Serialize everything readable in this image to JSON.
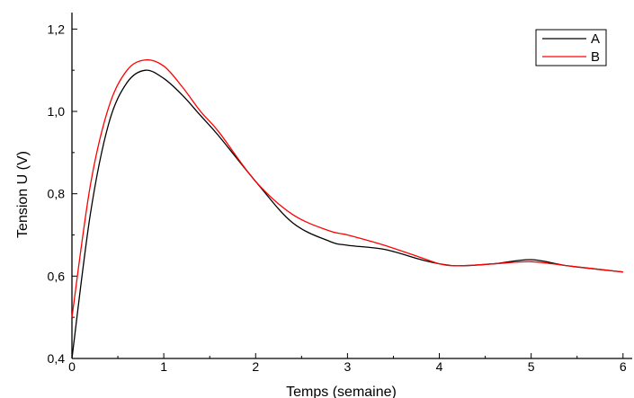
{
  "chart_data": {
    "type": "line",
    "title": "",
    "xlabel": "Temps (semaine)",
    "ylabel": "Tension U (V)",
    "xlim": [
      0,
      6.1
    ],
    "ylim": [
      0.4,
      1.24
    ],
    "x_ticks": [
      0,
      1,
      2,
      3,
      4,
      5,
      6
    ],
    "x_tick_labels": [
      "0",
      "1",
      "2",
      "3",
      "4",
      "5",
      "6"
    ],
    "y_ticks": [
      0.4,
      0.6,
      0.8,
      1.0,
      1.2
    ],
    "y_tick_labels": [
      "0,4",
      "0,6",
      "0,8",
      "1,0",
      "1,2"
    ],
    "grid": false,
    "legend_position": "top-right",
    "series": [
      {
        "name": "A",
        "color": "#000000",
        "x": [
          0,
          0.2,
          0.4,
          0.6,
          0.8,
          1.0,
          1.2,
          1.4,
          1.6,
          2.0,
          2.4,
          2.8,
          3.0,
          3.4,
          3.8,
          4.0,
          4.2,
          4.6,
          5.0,
          5.4,
          6.0
        ],
        "y": [
          0.4,
          0.75,
          0.97,
          1.07,
          1.1,
          1.08,
          1.04,
          0.99,
          0.94,
          0.83,
          0.73,
          0.685,
          0.675,
          0.665,
          0.64,
          0.63,
          0.625,
          0.63,
          0.64,
          0.625,
          0.61
        ]
      },
      {
        "name": "B",
        "color": "#ff0000",
        "x": [
          0,
          0.2,
          0.4,
          0.6,
          0.8,
          1.0,
          1.2,
          1.4,
          1.6,
          2.0,
          2.4,
          2.8,
          3.0,
          3.4,
          3.8,
          4.0,
          4.2,
          4.6,
          5.0,
          5.4,
          6.0
        ],
        "y": [
          0.5,
          0.82,
          1.01,
          1.1,
          1.125,
          1.11,
          1.06,
          1.0,
          0.95,
          0.83,
          0.75,
          0.71,
          0.7,
          0.675,
          0.645,
          0.63,
          0.625,
          0.63,
          0.635,
          0.625,
          0.61
        ]
      }
    ]
  }
}
